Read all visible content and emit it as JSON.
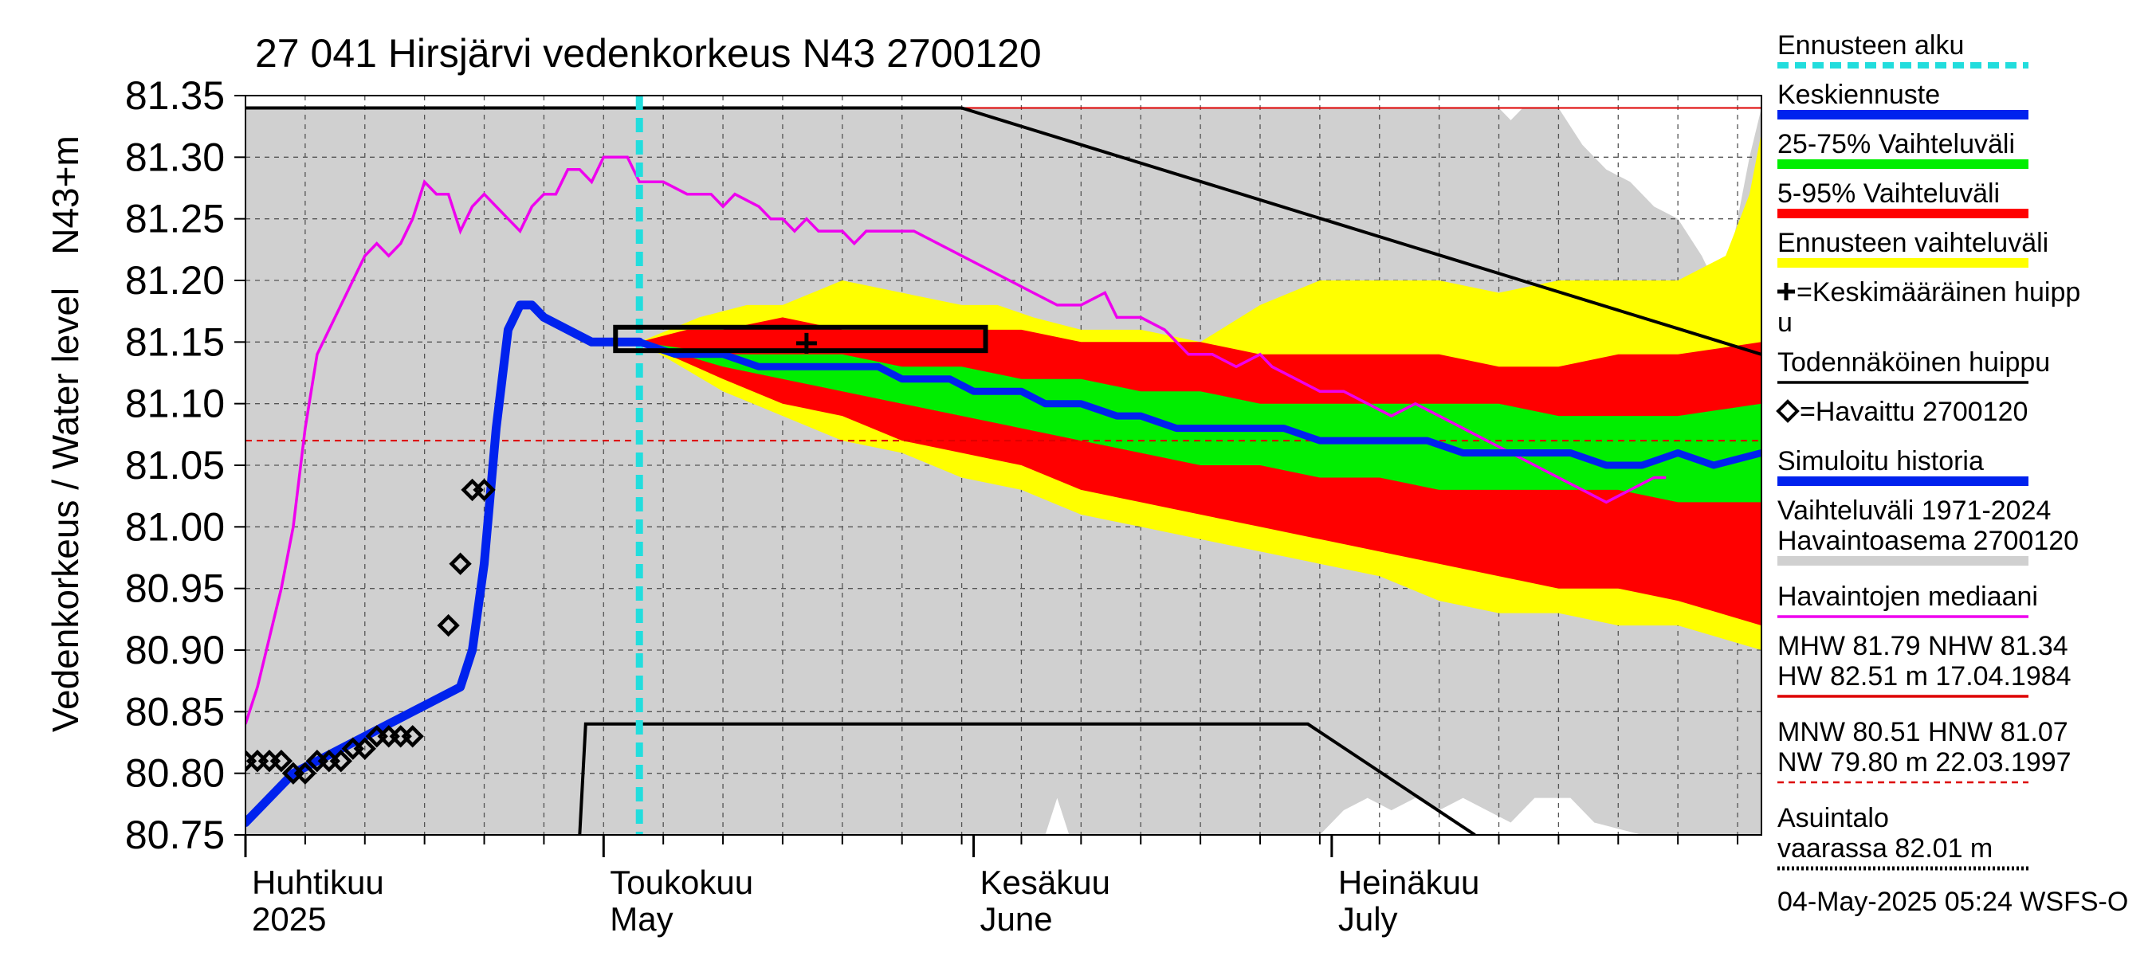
{
  "chart_data": {
    "type": "line",
    "title": "27 041 Hirsjärvi vedenkorkeus N43 2700120",
    "ylabel_main": "Vedenkorkeus / Water level",
    "ylabel_unit": "N43+m",
    "ylim": [
      80.75,
      81.35
    ],
    "yticks": [
      "81.35",
      "81.30",
      "81.25",
      "81.20",
      "81.15",
      "81.10",
      "81.05",
      "81.00",
      "80.95",
      "80.90",
      "80.85",
      "80.80",
      "80.75"
    ],
    "x_range_days": [
      0,
      127
    ],
    "month_labels": [
      {
        "fi": "Huhtikuu",
        "en": "2025",
        "day": 0
      },
      {
        "fi": "Toukokuu",
        "en": "May",
        "day": 30
      },
      {
        "fi": "Kesäkuu",
        "en": "June",
        "day": 61
      },
      {
        "fi": "Heinäkuu",
        "en": "July",
        "day": 91
      }
    ],
    "forecast_start_day": 33,
    "reference_lines": {
      "nhw": 81.34,
      "hnw": 81.07
    },
    "history_range_upper": [
      [
        0,
        81.34
      ],
      [
        105,
        81.34
      ],
      [
        106,
        81.33
      ],
      [
        107,
        81.34
      ],
      [
        110,
        81.34
      ],
      [
        112,
        81.31
      ],
      [
        114,
        81.29
      ],
      [
        116,
        81.28
      ],
      [
        118,
        81.26
      ],
      [
        120,
        81.25
      ],
      [
        122,
        81.22
      ],
      [
        123,
        81.2
      ],
      [
        124,
        81.2
      ],
      [
        126,
        81.3
      ],
      [
        127,
        81.34
      ]
    ],
    "history_range_lower": [
      [
        0,
        80.75
      ],
      [
        67,
        80.75
      ],
      [
        68,
        80.78
      ],
      [
        69,
        80.75
      ],
      [
        90,
        80.75
      ],
      [
        92,
        80.77
      ],
      [
        94,
        80.78
      ],
      [
        96,
        80.77
      ],
      [
        98,
        80.78
      ],
      [
        100,
        80.77
      ],
      [
        102,
        80.78
      ],
      [
        104,
        80.77
      ],
      [
        106,
        80.76
      ],
      [
        108,
        80.78
      ],
      [
        111,
        80.78
      ],
      [
        113,
        80.76
      ],
      [
        117,
        80.75
      ],
      [
        127,
        80.75
      ]
    ],
    "band_5_95": {
      "upper": [
        [
          33,
          81.15
        ],
        [
          37,
          81.16
        ],
        [
          40,
          81.16
        ],
        [
          45,
          81.17
        ],
        [
          50,
          81.16
        ],
        [
          55,
          81.16
        ],
        [
          60,
          81.16
        ],
        [
          65,
          81.16
        ],
        [
          70,
          81.15
        ],
        [
          75,
          81.15
        ],
        [
          80,
          81.15
        ],
        [
          85,
          81.14
        ],
        [
          90,
          81.14
        ],
        [
          95,
          81.14
        ],
        [
          100,
          81.14
        ],
        [
          105,
          81.13
        ],
        [
          110,
          81.13
        ],
        [
          115,
          81.14
        ],
        [
          120,
          81.14
        ],
        [
          127,
          81.15
        ]
      ],
      "lower": [
        [
          33,
          81.15
        ],
        [
          40,
          81.12
        ],
        [
          45,
          81.1
        ],
        [
          50,
          81.09
        ],
        [
          55,
          81.07
        ],
        [
          60,
          81.06
        ],
        [
          65,
          81.05
        ],
        [
          70,
          81.03
        ],
        [
          75,
          81.02
        ],
        [
          80,
          81.01
        ],
        [
          85,
          81.0
        ],
        [
          90,
          80.99
        ],
        [
          95,
          80.98
        ],
        [
          100,
          80.97
        ],
        [
          105,
          80.96
        ],
        [
          110,
          80.95
        ],
        [
          115,
          80.95
        ],
        [
          120,
          80.94
        ],
        [
          127,
          80.92
        ]
      ]
    },
    "band_forecast_range": {
      "upper": [
        [
          33,
          81.15
        ],
        [
          38,
          81.17
        ],
        [
          42,
          81.18
        ],
        [
          45,
          81.18
        ],
        [
          50,
          81.2
        ],
        [
          55,
          81.19
        ],
        [
          60,
          81.18
        ],
        [
          63,
          81.18
        ],
        [
          66,
          81.17
        ],
        [
          70,
          81.16
        ],
        [
          75,
          81.16
        ],
        [
          80,
          81.15
        ],
        [
          85,
          81.18
        ],
        [
          90,
          81.2
        ],
        [
          95,
          81.2
        ],
        [
          100,
          81.2
        ],
        [
          105,
          81.19
        ],
        [
          110,
          81.2
        ],
        [
          115,
          81.2
        ],
        [
          120,
          81.2
        ],
        [
          124,
          81.22
        ],
        [
          126,
          81.27
        ],
        [
          127,
          81.32
        ]
      ],
      "lower": [
        [
          33,
          81.15
        ],
        [
          40,
          81.11
        ],
        [
          45,
          81.09
        ],
        [
          50,
          81.07
        ],
        [
          55,
          81.06
        ],
        [
          60,
          81.04
        ],
        [
          65,
          81.03
        ],
        [
          70,
          81.01
        ],
        [
          75,
          81.0
        ],
        [
          80,
          80.99
        ],
        [
          85,
          80.98
        ],
        [
          90,
          80.97
        ],
        [
          95,
          80.96
        ],
        [
          100,
          80.94
        ],
        [
          105,
          80.93
        ],
        [
          110,
          80.93
        ],
        [
          115,
          80.92
        ],
        [
          120,
          80.92
        ],
        [
          127,
          80.9
        ]
      ]
    },
    "band_25_75": {
      "upper": [
        [
          33,
          81.15
        ],
        [
          40,
          81.14
        ],
        [
          45,
          81.14
        ],
        [
          50,
          81.14
        ],
        [
          55,
          81.13
        ],
        [
          60,
          81.13
        ],
        [
          65,
          81.12
        ],
        [
          70,
          81.12
        ],
        [
          75,
          81.11
        ],
        [
          80,
          81.11
        ],
        [
          85,
          81.1
        ],
        [
          90,
          81.1
        ],
        [
          95,
          81.1
        ],
        [
          100,
          81.1
        ],
        [
          105,
          81.1
        ],
        [
          110,
          81.09
        ],
        [
          115,
          81.09
        ],
        [
          120,
          81.09
        ],
        [
          127,
          81.1
        ]
      ],
      "lower": [
        [
          33,
          81.15
        ],
        [
          40,
          81.13
        ],
        [
          45,
          81.12
        ],
        [
          50,
          81.11
        ],
        [
          55,
          81.1
        ],
        [
          60,
          81.09
        ],
        [
          65,
          81.08
        ],
        [
          70,
          81.07
        ],
        [
          75,
          81.06
        ],
        [
          80,
          81.05
        ],
        [
          85,
          81.05
        ],
        [
          90,
          81.04
        ],
        [
          95,
          81.04
        ],
        [
          100,
          81.03
        ],
        [
          105,
          81.03
        ],
        [
          110,
          81.03
        ],
        [
          115,
          81.03
        ],
        [
          120,
          81.02
        ],
        [
          127,
          81.02
        ]
      ]
    },
    "median_forecast": [
      [
        33,
        81.15
      ],
      [
        36,
        81.14
      ],
      [
        40,
        81.14
      ],
      [
        43,
        81.13
      ],
      [
        45,
        81.13
      ],
      [
        47,
        81.13
      ],
      [
        49,
        81.13
      ],
      [
        51,
        81.13
      ],
      [
        53,
        81.13
      ],
      [
        55,
        81.12
      ],
      [
        57,
        81.12
      ],
      [
        59,
        81.12
      ],
      [
        61,
        81.11
      ],
      [
        63,
        81.11
      ],
      [
        65,
        81.11
      ],
      [
        67,
        81.1
      ],
      [
        70,
        81.1
      ],
      [
        73,
        81.09
      ],
      [
        75,
        81.09
      ],
      [
        78,
        81.08
      ],
      [
        81,
        81.08
      ],
      [
        84,
        81.08
      ],
      [
        87,
        81.08
      ],
      [
        90,
        81.07
      ],
      [
        93,
        81.07
      ],
      [
        96,
        81.07
      ],
      [
        99,
        81.07
      ],
      [
        102,
        81.06
      ],
      [
        105,
        81.06
      ],
      [
        108,
        81.06
      ],
      [
        111,
        81.06
      ],
      [
        114,
        81.05
      ],
      [
        117,
        81.05
      ],
      [
        120,
        81.06
      ],
      [
        123,
        81.05
      ],
      [
        127,
        81.06
      ]
    ],
    "simulated_history": [
      [
        0,
        80.76
      ],
      [
        2,
        80.78
      ],
      [
        4,
        80.8
      ],
      [
        6,
        80.81
      ],
      [
        8,
        80.82
      ],
      [
        10,
        80.83
      ],
      [
        12,
        80.84
      ],
      [
        14,
        80.85
      ],
      [
        16,
        80.86
      ],
      [
        18,
        80.87
      ],
      [
        19,
        80.9
      ],
      [
        20,
        80.97
      ],
      [
        21,
        81.08
      ],
      [
        22,
        81.16
      ],
      [
        23,
        81.18
      ],
      [
        24,
        81.18
      ],
      [
        25,
        81.17
      ],
      [
        27,
        81.16
      ],
      [
        29,
        81.15
      ],
      [
        31,
        81.15
      ],
      [
        33,
        81.15
      ]
    ],
    "observed": [
      [
        0,
        80.81
      ],
      [
        1,
        80.81
      ],
      [
        2,
        80.81
      ],
      [
        3,
        80.81
      ],
      [
        4,
        80.8
      ],
      [
        5,
        80.8
      ],
      [
        6,
        80.81
      ],
      [
        7,
        80.81
      ],
      [
        8,
        80.81
      ],
      [
        9,
        80.82
      ],
      [
        10,
        80.82
      ],
      [
        11,
        80.83
      ],
      [
        12,
        80.83
      ],
      [
        13,
        80.83
      ],
      [
        14,
        80.83
      ],
      [
        17,
        80.92
      ],
      [
        18,
        80.97
      ],
      [
        19,
        81.03
      ],
      [
        20,
        81.03
      ]
    ],
    "observed_median": [
      [
        0,
        80.84
      ],
      [
        1,
        80.87
      ],
      [
        2,
        80.91
      ],
      [
        3,
        80.95
      ],
      [
        4,
        81.0
      ],
      [
        5,
        81.08
      ],
      [
        6,
        81.14
      ],
      [
        8,
        81.18
      ],
      [
        10,
        81.22
      ],
      [
        11,
        81.23
      ],
      [
        12,
        81.22
      ],
      [
        13,
        81.23
      ],
      [
        14,
        81.25
      ],
      [
        15,
        81.28
      ],
      [
        16,
        81.27
      ],
      [
        17,
        81.27
      ],
      [
        18,
        81.24
      ],
      [
        19,
        81.26
      ],
      [
        20,
        81.27
      ],
      [
        22,
        81.25
      ],
      [
        23,
        81.24
      ],
      [
        24,
        81.26
      ],
      [
        25,
        81.27
      ],
      [
        26,
        81.27
      ],
      [
        27,
        81.29
      ],
      [
        28,
        81.29
      ],
      [
        29,
        81.28
      ],
      [
        30,
        81.3
      ],
      [
        31,
        81.3
      ],
      [
        32,
        81.3
      ],
      [
        33,
        81.28
      ],
      [
        35,
        81.28
      ],
      [
        37,
        81.27
      ],
      [
        39,
        81.27
      ],
      [
        40,
        81.26
      ],
      [
        41,
        81.27
      ],
      [
        43,
        81.26
      ],
      [
        44,
        81.25
      ],
      [
        45,
        81.25
      ],
      [
        46,
        81.24
      ],
      [
        47,
        81.25
      ],
      [
        48,
        81.24
      ],
      [
        50,
        81.24
      ],
      [
        51,
        81.23
      ],
      [
        52,
        81.24
      ],
      [
        56,
        81.24
      ],
      [
        58,
        81.23
      ],
      [
        60,
        81.22
      ],
      [
        62,
        81.21
      ],
      [
        64,
        81.2
      ],
      [
        66,
        81.19
      ],
      [
        68,
        81.18
      ],
      [
        70,
        81.18
      ],
      [
        72,
        81.19
      ],
      [
        73,
        81.17
      ],
      [
        75,
        81.17
      ],
      [
        77,
        81.16
      ],
      [
        79,
        81.14
      ],
      [
        81,
        81.14
      ],
      [
        83,
        81.13
      ],
      [
        85,
        81.14
      ],
      [
        86,
        81.13
      ],
      [
        88,
        81.12
      ],
      [
        90,
        81.11
      ],
      [
        92,
        81.11
      ],
      [
        94,
        81.1
      ],
      [
        96,
        81.09
      ],
      [
        98,
        81.1
      ],
      [
        100,
        81.09
      ],
      [
        102,
        81.08
      ],
      [
        104,
        81.07
      ],
      [
        106,
        81.06
      ],
      [
        108,
        81.05
      ],
      [
        110,
        81.04
      ],
      [
        112,
        81.03
      ],
      [
        114,
        81.02
      ],
      [
        116,
        81.03
      ],
      [
        118,
        81.04
      ],
      [
        119,
        81.04
      ]
    ],
    "forecast_box": {
      "x0": 31,
      "x1": 62,
      "y0": 81.143,
      "y1": 81.162
    },
    "mean_peak": {
      "day": 47,
      "value": 81.149
    },
    "black_line_upper": [
      [
        0,
        81.34
      ],
      [
        60,
        81.34
      ],
      [
        127,
        81.14
      ]
    ],
    "black_line_lower": [
      [
        28,
        80.75
      ],
      [
        28.5,
        80.84
      ],
      [
        89,
        80.84
      ],
      [
        103,
        80.75
      ]
    ],
    "legend": [
      {
        "label": "Ennusteen alku",
        "color": "#22dddd",
        "style": "dashed"
      },
      {
        "label": "Keskiennuste",
        "color": "#0022ee",
        "style": "thick"
      },
      {
        "label": "25-75% Vaihteluväli",
        "color": "#00ee00",
        "style": "thick"
      },
      {
        "label": "5-95% Vaihteluväli",
        "color": "#ff0000",
        "style": "thick"
      },
      {
        "label": "Ennusteen vaihteluväli",
        "color": "#ffff00",
        "style": "thick"
      },
      {
        "label": "=Keskimääräinen huipp",
        "label2": "u",
        "color": "#000000",
        "style": "plus"
      },
      {
        "label": "Todennäköinen huippu",
        "color": "#000000",
        "style": "line"
      },
      {
        "label": "=Havaittu 2700120",
        "color": "#000000",
        "style": "diamond"
      },
      {
        "label": "Simuloitu historia",
        "color": "#0022ee",
        "style": "thick"
      },
      {
        "label": "Vaihteluväli 1971-2024",
        "label2": " Havaintoasema 2700120",
        "color": "#d0d0d0",
        "style": "thick"
      },
      {
        "label": "Havaintojen mediaani",
        "color": "#ee00ee",
        "style": "line"
      },
      {
        "label": "MHW  81.79 NHW  81.34",
        "label2": "HW  82.51 m 17.04.1984",
        "color": "#dd0000",
        "style": "line"
      },
      {
        "label": "MNW  80.51 HNW  81.07",
        "label2": "NW  79.80 m 22.03.1997",
        "color": "#dd0000",
        "style": "dashed"
      },
      {
        "label": "Asuintalo",
        "label2": "vaarassa 82.01 m",
        "color": "#000000",
        "style": "dotted"
      }
    ],
    "timestamp": "04-May-2025 05:24 WSFS-O",
    "colors": {
      "history": "#d0d0d0",
      "forecast_range": "#ffff00",
      "band_5_95": "#ff0000",
      "band_25_75": "#00ee00",
      "median": "#0022ee",
      "observed_median": "#ee00ee",
      "forecast_start": "#22dddd",
      "ref_line": "#dd0000"
    }
  }
}
